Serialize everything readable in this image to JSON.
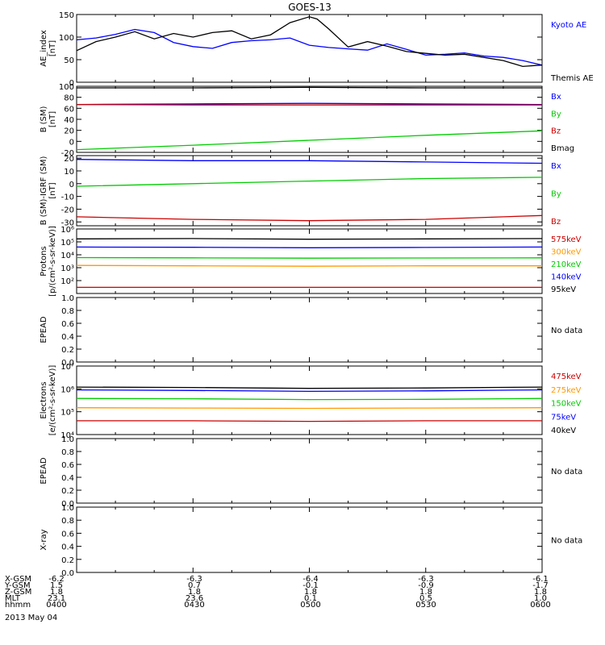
{
  "title": "GOES-13",
  "nodata_text": "No data",
  "footer": {
    "rows": [
      {
        "label": "X-GSM",
        "values": [
          "-6.2",
          "-6.3",
          "-6.4",
          "-6.3",
          "-6.1"
        ]
      },
      {
        "label": "Y-GSM",
        "values": [
          "1.5",
          "0.7",
          "-0.1",
          "-0.9",
          "-1.7"
        ]
      },
      {
        "label": "Z-GSM",
        "values": [
          "1.8",
          "1.8",
          "1.8",
          "1.8",
          "1.8"
        ]
      },
      {
        "label": "MLT",
        "values": [
          "23.1",
          "23.6",
          "0.1",
          "0.5",
          "1.0"
        ]
      },
      {
        "label": "hhmm",
        "values": [
          "0400",
          "0430",
          "0500",
          "0530",
          "0600"
        ]
      }
    ],
    "date": "2013 May 04"
  },
  "chart_data": [
    {
      "type": "line",
      "ylabel": "AE_index\n[nT]",
      "ylim": [
        0,
        150
      ],
      "yticks": [
        0,
        50,
        100,
        150
      ],
      "xlim_minutes": [
        0,
        120
      ],
      "legend_placement": "right",
      "series": [
        {
          "name": "Kyoto AE",
          "color": "#0000ff",
          "x": [
            0,
            5,
            10,
            15,
            20,
            25,
            30,
            35,
            40,
            45,
            50,
            55,
            60,
            65,
            70,
            75,
            80,
            85,
            90,
            95,
            100,
            105,
            110,
            115,
            120
          ],
          "y": [
            94,
            98,
            106,
            117,
            110,
            88,
            79,
            75,
            88,
            92,
            94,
            98,
            82,
            77,
            74,
            71,
            85,
            73,
            60,
            62,
            65,
            58,
            55,
            48,
            38
          ]
        },
        {
          "name": "Themis AE",
          "color": "#000000",
          "x": [
            0,
            5,
            10,
            15,
            20,
            25,
            30,
            35,
            40,
            45,
            50,
            55,
            60,
            62,
            65,
            70,
            75,
            80,
            85,
            90,
            95,
            100,
            105,
            110,
            115,
            120
          ],
          "y": [
            70,
            90,
            100,
            112,
            96,
            108,
            100,
            110,
            114,
            96,
            105,
            132,
            145,
            140,
            118,
            78,
            90,
            80,
            68,
            64,
            60,
            62,
            55,
            48,
            35,
            38
          ]
        }
      ]
    },
    {
      "type": "line",
      "ylabel": "B (SM)\n[nT]",
      "ylim": [
        -20,
        100
      ],
      "yticks": [
        -20,
        0,
        20,
        40,
        60,
        80,
        100
      ],
      "legend_placement": "right",
      "series": [
        {
          "name": "Bx",
          "color": "#0000ff",
          "x": [
            0,
            30,
            60,
            90,
            120
          ],
          "y": [
            67,
            68,
            69,
            68,
            67
          ]
        },
        {
          "name": "By",
          "color": "#00cc00",
          "x": [
            0,
            30,
            60,
            90,
            120
          ],
          "y": [
            -15,
            -7,
            2,
            11,
            19
          ]
        },
        {
          "name": "Bz",
          "color": "#cc0000",
          "x": [
            0,
            30,
            60,
            90,
            120
          ],
          "y": [
            67,
            66,
            66,
            66,
            66
          ]
        },
        {
          "name": "Bmag",
          "color": "#000000",
          "x": [
            0,
            30,
            60,
            90,
            120
          ],
          "y": [
            97,
            97,
            98,
            97,
            97
          ]
        }
      ]
    },
    {
      "type": "line",
      "ylabel": "B (SM)-IGRF (SM)\n[nT]",
      "ylim": [
        -33,
        22
      ],
      "yticks": [
        -30,
        -20,
        -10,
        0,
        10,
        20
      ],
      "legend_placement": "right",
      "series": [
        {
          "name": "Bx",
          "color": "#0000ff",
          "x": [
            0,
            30,
            60,
            90,
            120
          ],
          "y": [
            19,
            18,
            18,
            17,
            16
          ]
        },
        {
          "name": "By",
          "color": "#00cc00",
          "x": [
            0,
            30,
            60,
            90,
            120
          ],
          "y": [
            -2,
            0,
            2,
            4,
            5
          ]
        },
        {
          "name": "Bz",
          "color": "#cc0000",
          "x": [
            0,
            30,
            60,
            90,
            120
          ],
          "y": [
            -26,
            -28,
            -29,
            -28,
            -25
          ]
        }
      ]
    },
    {
      "type": "line",
      "ylabel": "Protons\n[p/(cm²-s-sr-keV)]",
      "yscale": "log",
      "ylim": [
        10,
        1000000
      ],
      "yticks": [
        100,
        1000,
        10000,
        100000,
        1000000
      ],
      "ytick_labels": [
        "10²",
        "10³",
        "10⁴",
        "10⁵",
        "10⁶"
      ],
      "legend_placement": "right",
      "series": [
        {
          "name": "575keV",
          "color": "#cc0000",
          "x": [
            0,
            30,
            60,
            90,
            120
          ],
          "y": [
            30,
            30,
            30,
            30,
            30
          ]
        },
        {
          "name": "300keV",
          "color": "#ff9900",
          "x": [
            0,
            30,
            60,
            90,
            120
          ],
          "y": [
            1500,
            1400,
            1300,
            1400,
            1400
          ]
        },
        {
          "name": "210keV",
          "color": "#00cc00",
          "x": [
            0,
            30,
            60,
            90,
            120
          ],
          "y": [
            6000,
            5800,
            5500,
            5600,
            5800
          ]
        },
        {
          "name": "140keV",
          "color": "#0000ff",
          "x": [
            0,
            30,
            60,
            90,
            120
          ],
          "y": [
            40000,
            38000,
            35000,
            37000,
            40000
          ]
        },
        {
          "name": "95keV",
          "color": "#000000",
          "x": [
            0,
            30,
            60,
            90,
            120
          ],
          "y": [
            170000,
            180000,
            160000,
            170000,
            180000
          ]
        }
      ]
    },
    {
      "type": "line",
      "ylabel": "EPEAD",
      "ylim": [
        0,
        1
      ],
      "yticks": [
        0,
        0.2,
        0.4,
        0.6,
        0.8,
        1.0
      ],
      "ytick_labels": [
        "0.0",
        "0.2",
        "0.4",
        "0.6",
        "0.8",
        "1.0"
      ],
      "nodata": true,
      "series": []
    },
    {
      "type": "line",
      "ylabel": "Electrons\n[e/(cm²-s-sr-keV)]",
      "yscale": "log",
      "ylim": [
        10000,
        10000000
      ],
      "yticks": [
        10000,
        100000,
        1000000,
        10000000
      ],
      "ytick_labels": [
        "10⁴",
        "10⁵",
        "10⁶",
        "10⁷"
      ],
      "legend_placement": "right",
      "series": [
        {
          "name": "475keV",
          "color": "#cc0000",
          "x": [
            0,
            30,
            60,
            90,
            120
          ],
          "y": [
            40000,
            40000,
            38000,
            40000,
            40000
          ]
        },
        {
          "name": "275keV",
          "color": "#ff9900",
          "x": [
            0,
            30,
            60,
            90,
            120
          ],
          "y": [
            150000,
            145000,
            140000,
            145000,
            150000
          ]
        },
        {
          "name": "150keV",
          "color": "#00cc00",
          "x": [
            0,
            30,
            60,
            90,
            120
          ],
          "y": [
            380000,
            370000,
            340000,
            350000,
            380000
          ]
        },
        {
          "name": "75keV",
          "color": "#0000ff",
          "x": [
            0,
            30,
            60,
            90,
            120
          ],
          "y": [
            900000,
            850000,
            780000,
            820000,
            900000
          ]
        },
        {
          "name": "40keV",
          "color": "#000000",
          "x": [
            0,
            30,
            60,
            90,
            120
          ],
          "y": [
            1200000,
            1150000,
            1050000,
            1100000,
            1200000
          ]
        }
      ]
    },
    {
      "type": "line",
      "ylabel": "EPEAD",
      "ylim": [
        0,
        1
      ],
      "yticks": [
        0,
        0.2,
        0.4,
        0.6,
        0.8,
        1.0
      ],
      "ytick_labels": [
        "0.0",
        "0.2",
        "0.4",
        "0.6",
        "0.8",
        "1.0"
      ],
      "nodata": true,
      "series": []
    },
    {
      "type": "line",
      "ylabel": "X-ray",
      "ylim": [
        0,
        1
      ],
      "yticks": [
        0,
        0.2,
        0.4,
        0.6,
        0.8,
        1.0
      ],
      "ytick_labels": [
        "0.0",
        "0.2",
        "0.4",
        "0.6",
        "0.8",
        "1.0"
      ],
      "nodata": true,
      "series": []
    }
  ]
}
